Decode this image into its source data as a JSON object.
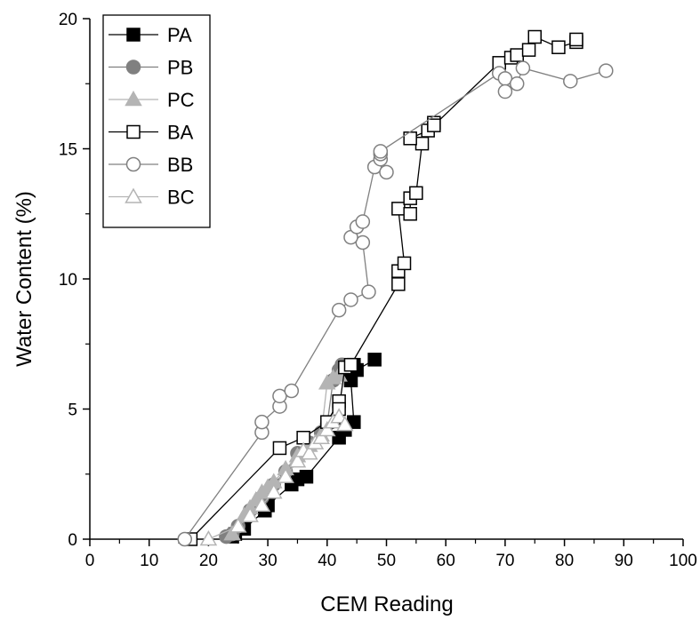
{
  "chart_data": {
    "type": "scatter",
    "xlabel": "CEM Reading",
    "ylabel": "Water Content (%)",
    "xlim": [
      0,
      100
    ],
    "ylim": [
      0,
      20
    ],
    "x_ticks": [
      "0",
      "10",
      "20",
      "30",
      "40",
      "50",
      "60",
      "70",
      "80",
      "90",
      "100"
    ],
    "y_ticks": [
      "0",
      "5",
      "10",
      "15",
      "20"
    ],
    "legend_position": "top-left",
    "series": [
      {
        "name": "PA",
        "marker": "square",
        "filled": true,
        "color": "#000000",
        "points": [
          [
            24,
            0.1
          ],
          [
            24.5,
            0.2
          ],
          [
            26,
            0.4
          ],
          [
            29.5,
            1.1
          ],
          [
            30,
            1.3
          ],
          [
            34,
            2.1
          ],
          [
            35,
            2.3
          ],
          [
            36.5,
            2.4
          ],
          [
            42,
            3.9
          ],
          [
            43,
            4.2
          ],
          [
            44.5,
            4.5
          ],
          [
            44,
            6.1
          ],
          [
            44.5,
            6.7
          ],
          [
            45,
            6.5
          ],
          [
            48,
            6.9
          ]
        ]
      },
      {
        "name": "PB",
        "marker": "circle",
        "filled": true,
        "color": "#808080",
        "points": [
          [
            23,
            0.1
          ],
          [
            24,
            0.2
          ],
          [
            25,
            0.5
          ],
          [
            27,
            1.1
          ],
          [
            29,
            1.6
          ],
          [
            31,
            2.1
          ],
          [
            33,
            2.6
          ],
          [
            35,
            3.3
          ],
          [
            37,
            3.7
          ],
          [
            39,
            4.1
          ],
          [
            40,
            4.4
          ],
          [
            41,
            6.1
          ],
          [
            42,
            6.5
          ],
          [
            42.5,
            6.7
          ]
        ]
      },
      {
        "name": "PC",
        "marker": "triangle",
        "filled": true,
        "color": "#b4b4b4",
        "points": [
          [
            24,
            0.2
          ],
          [
            26,
            0.9
          ],
          [
            27,
            1.2
          ],
          [
            28,
            1.5
          ],
          [
            29,
            1.8
          ],
          [
            30,
            2.0
          ],
          [
            31,
            2.2
          ],
          [
            33,
            2.7
          ],
          [
            35,
            3.2
          ],
          [
            37,
            3.6
          ],
          [
            39,
            4.0
          ],
          [
            40,
            6.0
          ],
          [
            41,
            6.2
          ],
          [
            42,
            6.3
          ]
        ]
      },
      {
        "name": "BA",
        "marker": "square",
        "filled": false,
        "color": "#000000",
        "points": [
          [
            17,
            0.0
          ],
          [
            32,
            3.5
          ],
          [
            36,
            3.9
          ],
          [
            40,
            4.5
          ],
          [
            42,
            5.3
          ],
          [
            42,
            5.0
          ],
          [
            43,
            6.6
          ],
          [
            44,
            6.7
          ],
          [
            52,
            9.8
          ],
          [
            52,
            10.3
          ],
          [
            53,
            10.6
          ],
          [
            52,
            12.7
          ],
          [
            54,
            12.5
          ],
          [
            54,
            13.1
          ],
          [
            55,
            13.3
          ],
          [
            56,
            15.2
          ],
          [
            54,
            15.4
          ],
          [
            57,
            15.7
          ],
          [
            58,
            16.0
          ],
          [
            58,
            15.9
          ],
          [
            69,
            18.3
          ],
          [
            71,
            18.5
          ],
          [
            72,
            18.6
          ],
          [
            74,
            18.8
          ],
          [
            75,
            19.3
          ],
          [
            79,
            18.9
          ],
          [
            82,
            19.1
          ],
          [
            82,
            19.2
          ]
        ]
      },
      {
        "name": "BB",
        "marker": "circle",
        "filled": false,
        "color": "#808080",
        "points": [
          [
            16,
            0.0
          ],
          [
            29,
            4.1
          ],
          [
            29,
            4.5
          ],
          [
            32,
            5.1
          ],
          [
            32,
            5.5
          ],
          [
            34,
            5.7
          ],
          [
            42,
            8.8
          ],
          [
            44,
            9.2
          ],
          [
            47,
            9.5
          ],
          [
            46,
            11.4
          ],
          [
            44,
            11.6
          ],
          [
            45,
            12.0
          ],
          [
            46,
            12.2
          ],
          [
            48,
            14.3
          ],
          [
            50,
            14.1
          ],
          [
            49,
            14.6
          ],
          [
            49,
            14.8
          ],
          [
            49,
            14.9
          ],
          [
            69,
            17.9
          ],
          [
            70,
            17.7
          ],
          [
            70,
            17.2
          ],
          [
            72,
            17.5
          ],
          [
            73,
            18.1
          ],
          [
            81,
            17.6
          ],
          [
            87,
            18.0
          ]
        ]
      },
      {
        "name": "BC",
        "marker": "triangle",
        "filled": false,
        "color": "#b4b4b4",
        "points": [
          [
            20,
            0.0
          ],
          [
            25,
            0.5
          ],
          [
            27,
            0.9
          ],
          [
            29,
            1.3
          ],
          [
            31,
            1.8
          ],
          [
            33,
            2.4
          ],
          [
            35,
            3.0
          ],
          [
            36,
            3.4
          ],
          [
            37,
            3.3
          ],
          [
            38,
            3.7
          ],
          [
            39,
            3.9
          ],
          [
            40,
            4.2
          ],
          [
            41,
            4.5
          ],
          [
            42,
            4.7
          ],
          [
            43,
            4.4
          ]
        ]
      }
    ]
  }
}
